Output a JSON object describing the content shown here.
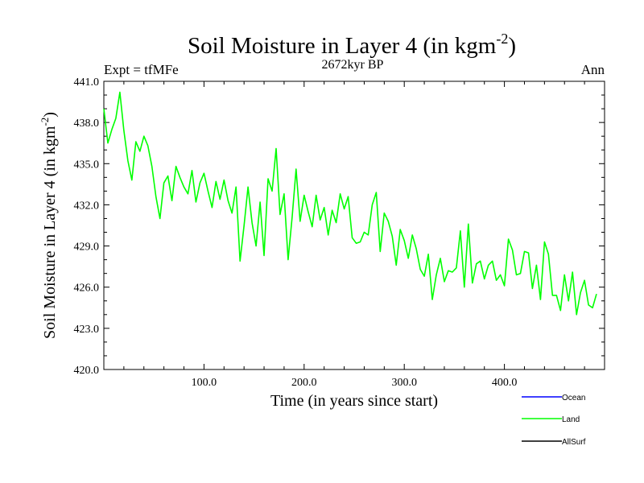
{
  "chart_data": {
    "type": "line",
    "title_main": "Soil Moisture in Layer 4 (in kgm",
    "title_sup": "-2",
    "title_close": ")",
    "subtitle": "2672kyr BP",
    "left_label": "Expt = tfMFe",
    "right_label": "Ann",
    "xlabel": "Time (in years since start)",
    "ylabel_main": "Soil Moisture in Layer 4 (in kgm",
    "ylabel_sup": "-2",
    "ylabel_close": ")",
    "xlim": [
      0,
      500
    ],
    "ylim": [
      420,
      441
    ],
    "x_ticks_major": [
      100,
      200,
      300,
      400
    ],
    "x_tick_labels": [
      "100.0",
      "200.0",
      "300.0",
      "400.0"
    ],
    "y_ticks_major": [
      420,
      423,
      426,
      429,
      432,
      435,
      438,
      441
    ],
    "y_tick_labels": [
      "420.0",
      "423.0",
      "426.0",
      "429.0",
      "432.0",
      "435.0",
      "438.0",
      "441.0"
    ],
    "legend": [
      {
        "name": "Ocean",
        "color": "#0000ff"
      },
      {
        "name": "Land",
        "color": "#00ff00"
      },
      {
        "name": "AllSurf",
        "color": "#000000"
      }
    ],
    "series": [
      {
        "name": "Land",
        "color": "#00ff00",
        "x_start": 0,
        "x_step": 4,
        "values": [
          439.0,
          436.5,
          437.5,
          438.3,
          440.2,
          437.4,
          435.2,
          433.8,
          436.6,
          435.9,
          437.0,
          436.3,
          434.8,
          432.6,
          431.0,
          433.6,
          434.1,
          432.3,
          434.8,
          434.0,
          433.3,
          432.8,
          434.5,
          432.2,
          433.6,
          434.3,
          433.0,
          431.8,
          433.7,
          432.4,
          433.8,
          432.3,
          431.4,
          433.3,
          427.9,
          430.5,
          433.3,
          430.7,
          429.0,
          432.2,
          428.3,
          433.9,
          433.0,
          436.1,
          431.3,
          432.8,
          428.0,
          431.1,
          434.6,
          430.8,
          432.7,
          431.5,
          430.4,
          432.7,
          430.9,
          431.8,
          429.8,
          431.6,
          430.7,
          432.8,
          431.7,
          432.6,
          429.6,
          429.2,
          429.3,
          430.0,
          429.8,
          432.0,
          432.9,
          428.6,
          431.4,
          430.8,
          429.7,
          427.6,
          430.2,
          429.4,
          428.1,
          429.8,
          428.8,
          427.3,
          426.8,
          428.4,
          425.1,
          426.9,
          428.1,
          426.4,
          427.2,
          427.1,
          427.4,
          430.1,
          426.0,
          430.6,
          426.3,
          427.7,
          427.9,
          426.6,
          427.6,
          427.9,
          426.5,
          426.9,
          426.1,
          429.5,
          428.7,
          426.9,
          427.0,
          428.6,
          428.5,
          425.9,
          427.6,
          425.1,
          429.3,
          428.4,
          425.4,
          425.4,
          424.3,
          426.9,
          425.0,
          427.1,
          424.0,
          425.6,
          426.5,
          424.7,
          424.5,
          425.5
        ]
      }
    ]
  }
}
